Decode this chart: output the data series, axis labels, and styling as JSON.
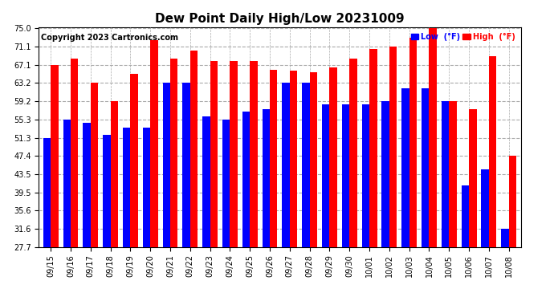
{
  "title": "Dew Point Daily High/Low 20231009",
  "copyright": "Copyright 2023 Cartronics.com",
  "legend_low_label": "Low  (°F)",
  "legend_high_label": "High  (°F)",
  "dates": [
    "09/15",
    "09/16",
    "09/17",
    "09/18",
    "09/19",
    "09/20",
    "09/21",
    "09/22",
    "09/23",
    "09/24",
    "09/25",
    "09/26",
    "09/27",
    "09/28",
    "09/29",
    "09/30",
    "10/01",
    "10/02",
    "10/03",
    "10/04",
    "10/05",
    "10/06",
    "10/07",
    "10/08"
  ],
  "high": [
    67.1,
    68.5,
    63.2,
    59.2,
    65.2,
    72.5,
    68.5,
    70.3,
    68.0,
    68.0,
    68.0,
    66.0,
    65.8,
    65.5,
    66.5,
    68.5,
    70.5,
    71.1,
    73.0,
    75.0,
    59.2,
    57.5,
    69.0,
    47.4
  ],
  "low": [
    51.3,
    55.3,
    54.5,
    52.0,
    53.5,
    53.5,
    63.2,
    63.2,
    56.0,
    55.3,
    57.0,
    57.5,
    63.2,
    63.2,
    58.5,
    58.5,
    58.5,
    59.2,
    62.0,
    62.0,
    59.2,
    41.0,
    44.5,
    31.6
  ],
  "yticks": [
    27.7,
    31.6,
    35.6,
    39.5,
    43.5,
    47.4,
    51.3,
    55.3,
    59.2,
    63.2,
    67.1,
    71.1,
    75.0
  ],
  "ymin": 27.7,
  "ymax": 75.0,
  "bar_width": 0.38,
  "high_color": "#FF0000",
  "low_color": "#0000FF",
  "grid_color": "#AAAAAA",
  "background_color": "#FFFFFF",
  "title_fontsize": 11,
  "tick_fontsize": 7,
  "copyright_fontsize": 7
}
